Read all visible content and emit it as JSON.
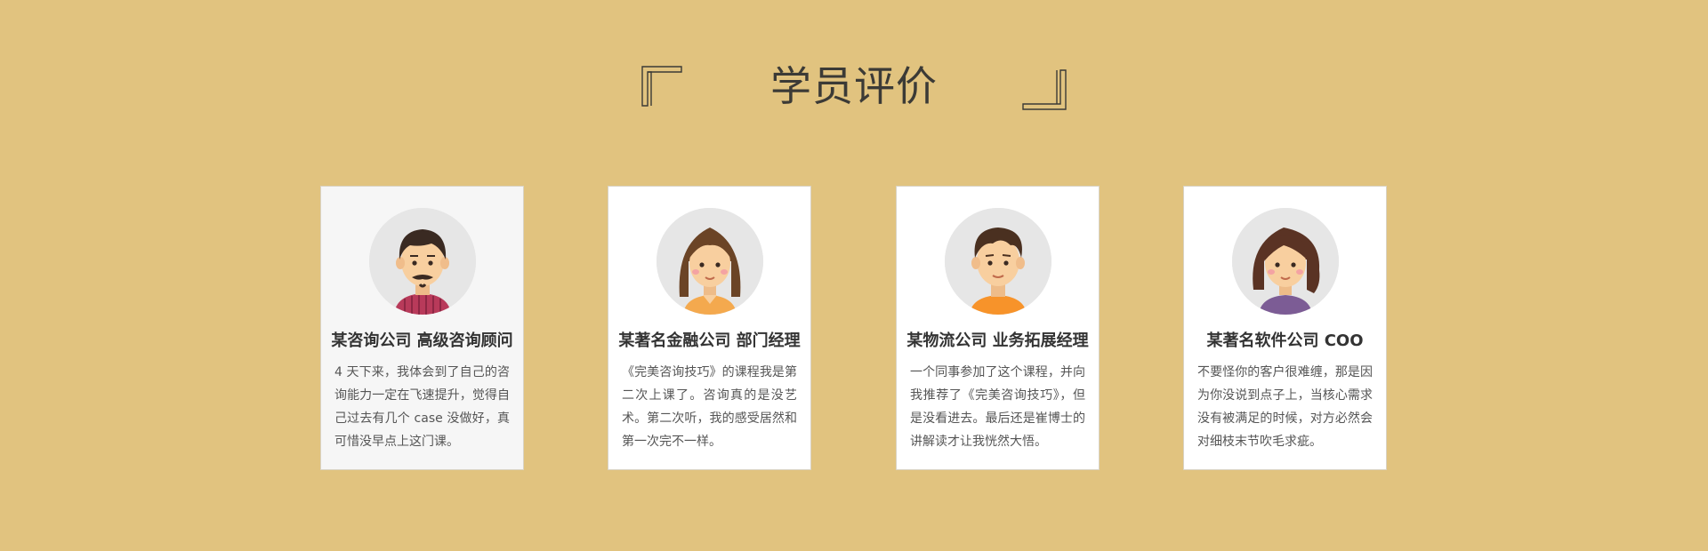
{
  "section": {
    "title": "学员评价",
    "left_bracket_icon": "corner-bracket-top-left-icon",
    "right_bracket_icon": "corner-bracket-bottom-right-icon"
  },
  "testimonials": [
    {
      "name": "某咨询公司 高级咨询顾问",
      "text": "4 天下来，我体会到了自己的咨询能力一定在飞速提升，觉得自己过去有几个 case 没做好，真可惜没早点上这门课。",
      "avatar": "man-with-beard-avatar-icon",
      "active": true
    },
    {
      "name": "某著名金融公司 部门经理",
      "text": "《完美咨询技巧》的课程我是第二次上课了。咨询真的是没艺术。第二次听，我的感受居然和第一次完不一样。",
      "avatar": "woman-long-hair-avatar-icon",
      "active": false
    },
    {
      "name": "某物流公司 业务拓展经理",
      "text": "一个同事参加了这个课程，并向我推荐了《完美咨询技巧》，但是没看进去。最后还是崔博士的讲解读才让我恍然大悟。",
      "avatar": "young-man-avatar-icon",
      "active": false
    },
    {
      "name": "某著名软件公司 COO",
      "text": "不要怪你的客户很难缠，那是因为你没说到点子上，当核心需求没有被满足的时候，对方必然会对细枝末节吹毛求疵。",
      "avatar": "woman-wavy-hair-avatar-icon",
      "active": false
    }
  ],
  "colors": {
    "background": "#e1c37f",
    "title": "#3b3a36",
    "card_bg": "#ffffff",
    "card_active_bg": "#f6f6f6",
    "avatar_bg": "#e6e6e6",
    "skin": "#f8cf9f"
  }
}
